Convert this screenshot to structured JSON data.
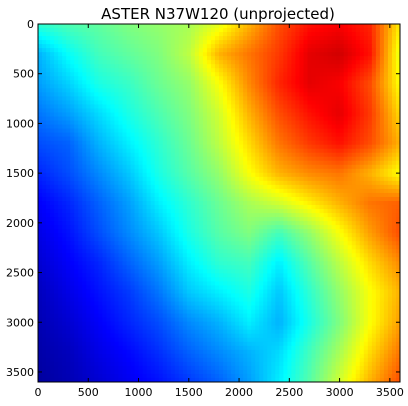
{
  "chart_data": {
    "type": "heatmap",
    "title": "ASTER N37W120 (unprojected)",
    "xlabel": "",
    "ylabel": "",
    "xlim": [
      0,
      3601
    ],
    "ylim": [
      3601,
      0
    ],
    "x_ticks": [
      0,
      500,
      1000,
      1500,
      2000,
      2500,
      3000,
      3500
    ],
    "y_ticks": [
      0,
      500,
      1000,
      1500,
      2000,
      2500,
      3000,
      3500
    ],
    "colormap": "jet",
    "colormap_stops": [
      "#00007f",
      "#0000ff",
      "#007fff",
      "#00ffff",
      "#7fff7f",
      "#ffff00",
      "#ff7f00",
      "#ff0000",
      "#7f0000"
    ],
    "grid": false,
    "relative_elevation_grid": [
      [
        0.42,
        0.45,
        0.47,
        0.5,
        0.52,
        0.54,
        0.6,
        0.7,
        0.8,
        0.86,
        0.88,
        0.84,
        0.64
      ],
      [
        0.3,
        0.38,
        0.44,
        0.47,
        0.5,
        0.56,
        0.7,
        0.76,
        0.82,
        0.9,
        0.92,
        0.86,
        0.6
      ],
      [
        0.28,
        0.33,
        0.4,
        0.43,
        0.48,
        0.52,
        0.62,
        0.74,
        0.84,
        0.9,
        0.88,
        0.8,
        0.62
      ],
      [
        0.24,
        0.28,
        0.34,
        0.4,
        0.45,
        0.5,
        0.58,
        0.7,
        0.8,
        0.86,
        0.9,
        0.82,
        0.66
      ],
      [
        0.2,
        0.22,
        0.3,
        0.36,
        0.42,
        0.48,
        0.56,
        0.66,
        0.76,
        0.82,
        0.86,
        0.8,
        0.7
      ],
      [
        0.16,
        0.2,
        0.26,
        0.32,
        0.4,
        0.46,
        0.52,
        0.62,
        0.7,
        0.74,
        0.76,
        0.7,
        0.62
      ],
      [
        0.12,
        0.16,
        0.22,
        0.28,
        0.36,
        0.42,
        0.48,
        0.54,
        0.58,
        0.64,
        0.7,
        0.76,
        0.78
      ],
      [
        0.1,
        0.14,
        0.2,
        0.26,
        0.32,
        0.4,
        0.46,
        0.5,
        0.44,
        0.52,
        0.62,
        0.72,
        0.8
      ],
      [
        0.08,
        0.12,
        0.16,
        0.22,
        0.28,
        0.36,
        0.42,
        0.44,
        0.36,
        0.46,
        0.56,
        0.66,
        0.74
      ],
      [
        0.06,
        0.1,
        0.14,
        0.18,
        0.24,
        0.32,
        0.36,
        0.4,
        0.32,
        0.42,
        0.52,
        0.62,
        0.7
      ],
      [
        0.05,
        0.08,
        0.12,
        0.16,
        0.2,
        0.26,
        0.3,
        0.36,
        0.3,
        0.4,
        0.5,
        0.62,
        0.72
      ],
      [
        0.04,
        0.06,
        0.1,
        0.13,
        0.17,
        0.22,
        0.26,
        0.3,
        0.34,
        0.44,
        0.54,
        0.66,
        0.76
      ],
      [
        0.03,
        0.05,
        0.08,
        0.11,
        0.14,
        0.18,
        0.22,
        0.28,
        0.36,
        0.46,
        0.58,
        0.7,
        0.8
      ]
    ]
  }
}
